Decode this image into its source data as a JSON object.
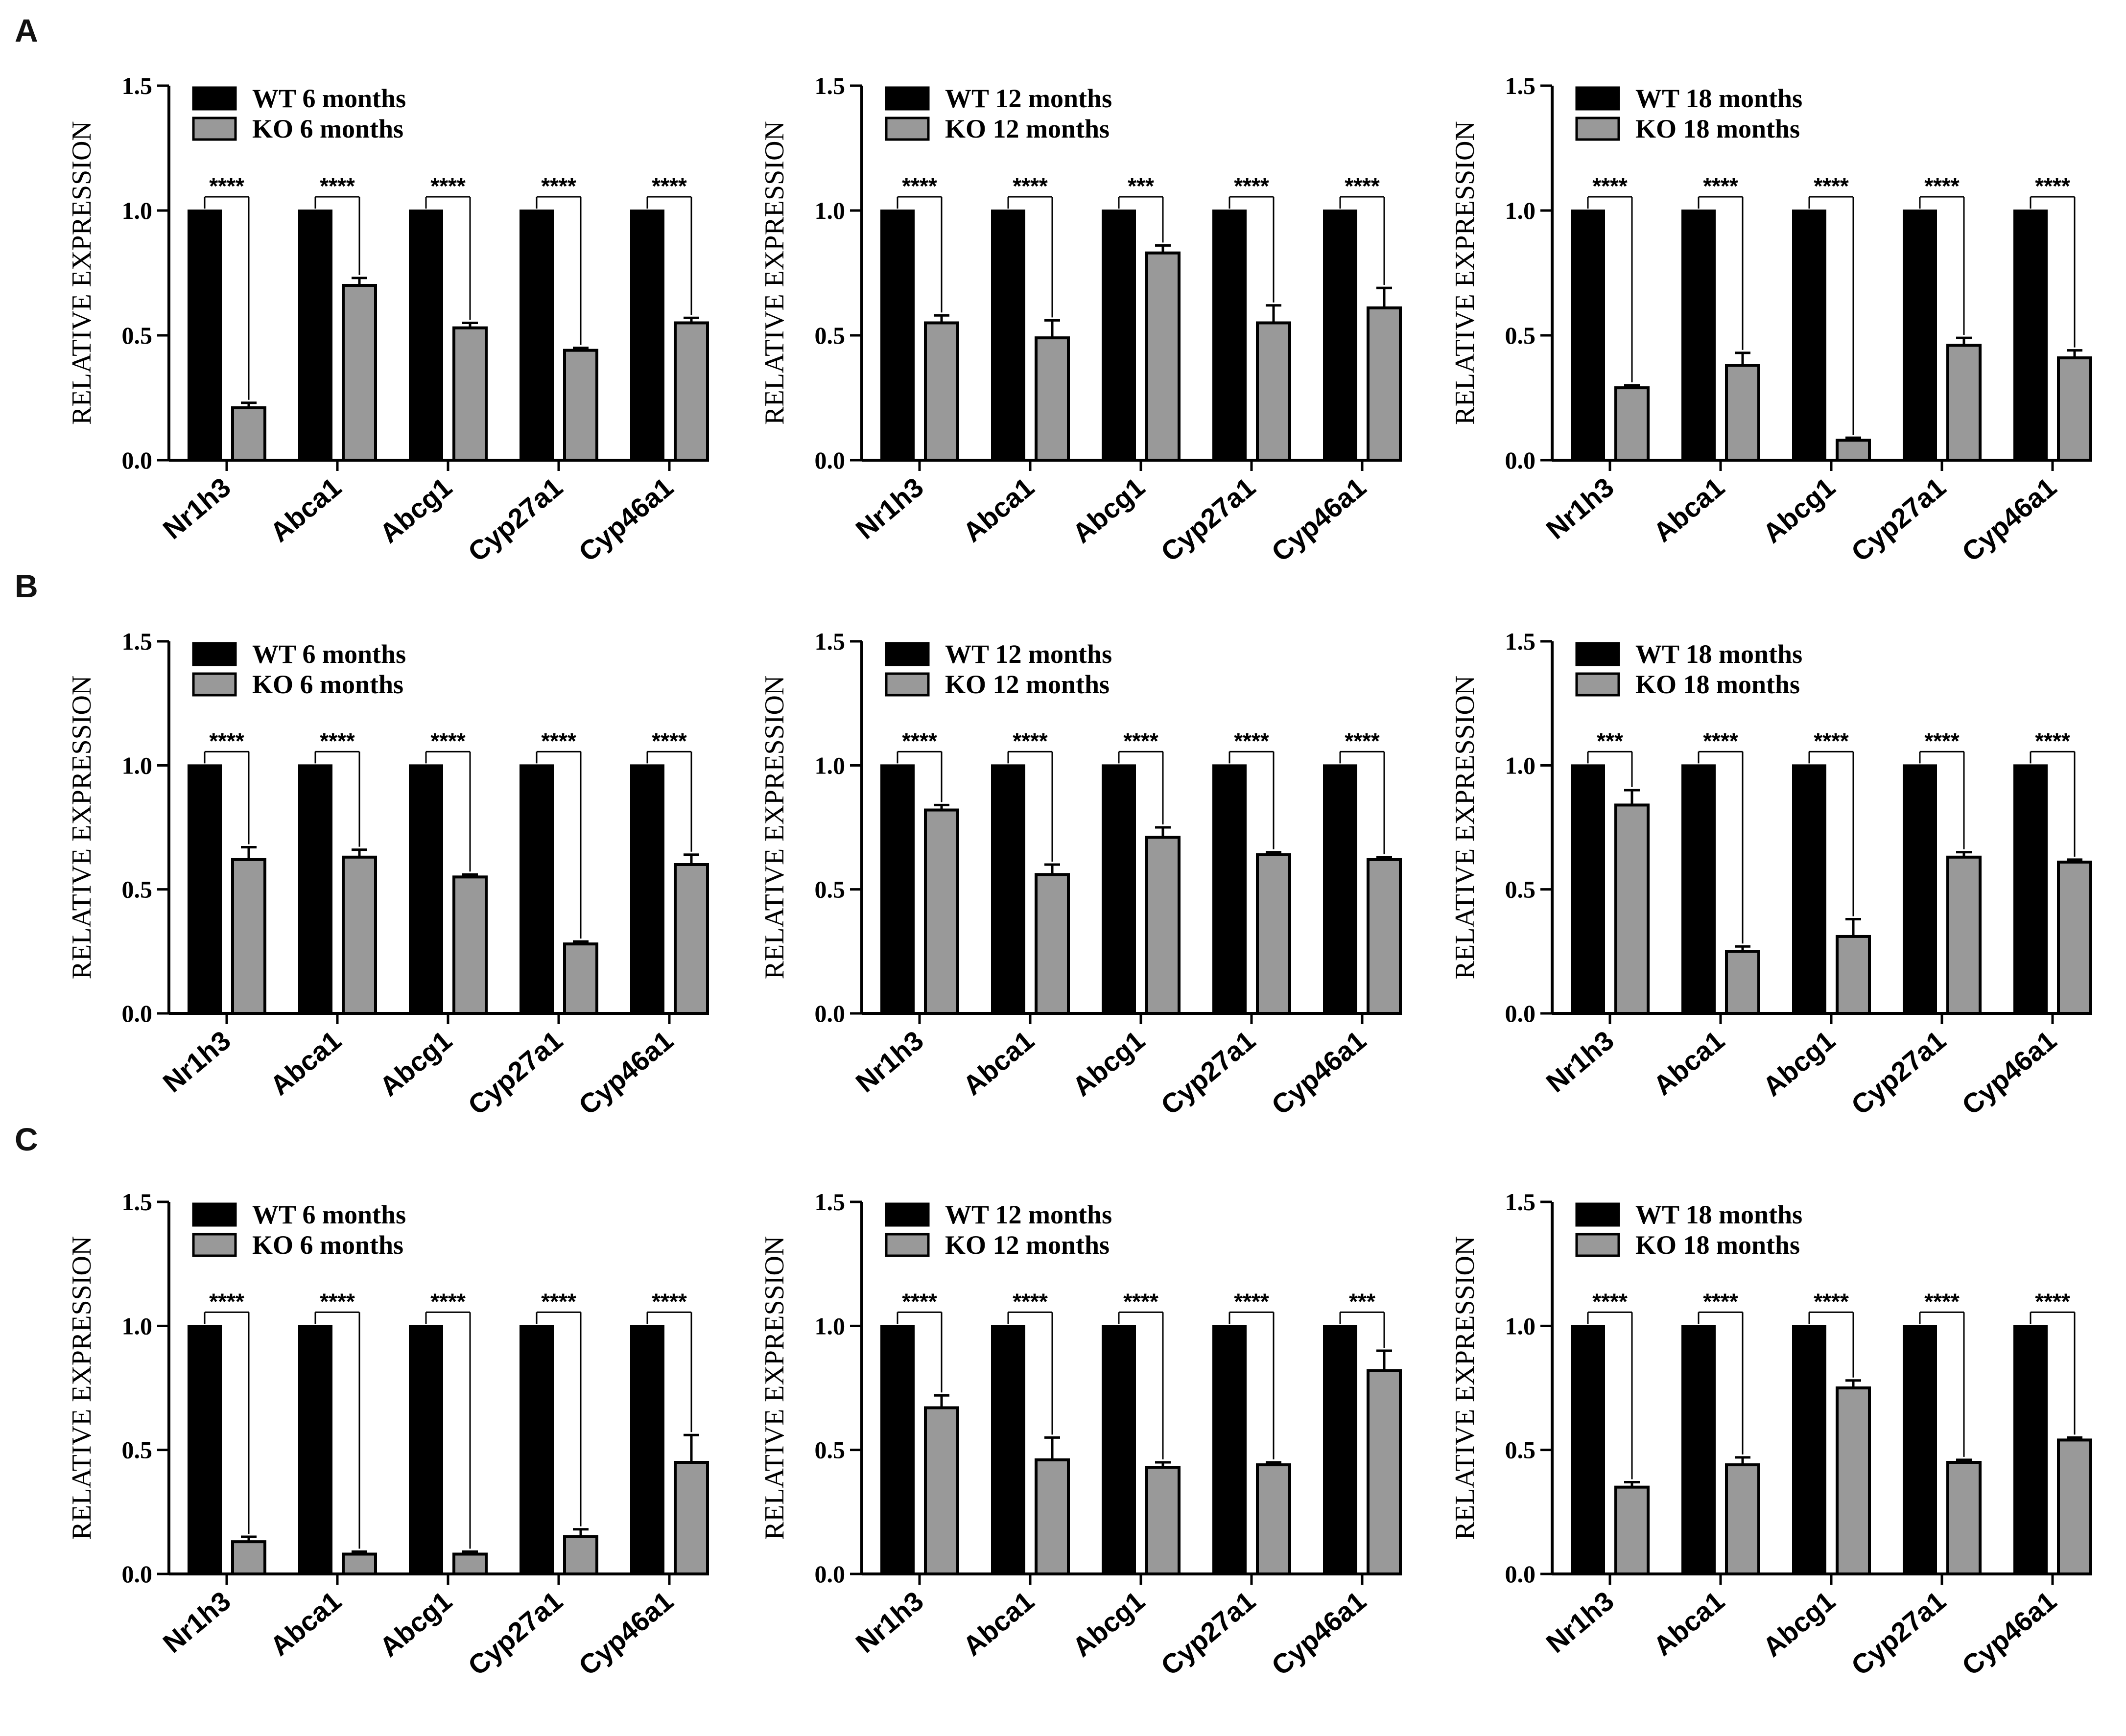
{
  "colors": {
    "wt": "#000000",
    "ko": "#999999",
    "axis": "#000000"
  },
  "chart_data": [
    {
      "panel": "A",
      "type": "bar",
      "ylabel": "RELATIVE EXPRESSION",
      "ylim": [
        0,
        1.5
      ],
      "yticks": [
        "0.0",
        "0.5",
        "1.0",
        "1.5"
      ],
      "categories": [
        "Nr1h3",
        "Abca1",
        "Abcg1",
        "Cyp27a1",
        "Cyp46a1"
      ],
      "series": [
        {
          "name": "WT 6 months",
          "values": [
            1.0,
            1.0,
            1.0,
            1.0,
            1.0
          ],
          "errors": [
            0,
            0,
            0,
            0,
            0
          ]
        },
        {
          "name": "KO 6 months",
          "values": [
            0.21,
            0.7,
            0.53,
            0.44,
            0.55
          ],
          "errors": [
            0.02,
            0.03,
            0.02,
            0.01,
            0.02
          ]
        }
      ],
      "significance": [
        "****",
        "****",
        "****",
        "****",
        "****"
      ]
    },
    {
      "panel": "",
      "type": "bar",
      "ylabel": "RELATIVE EXPRESSION",
      "ylim": [
        0,
        1.5
      ],
      "yticks": [
        "0.0",
        "0.5",
        "1.0",
        "1.5"
      ],
      "categories": [
        "Nr1h3",
        "Abca1",
        "Abcg1",
        "Cyp27a1",
        "Cyp46a1"
      ],
      "series": [
        {
          "name": "WT 12 months",
          "values": [
            1.0,
            1.0,
            1.0,
            1.0,
            1.0
          ],
          "errors": [
            0,
            0,
            0,
            0,
            0
          ]
        },
        {
          "name": "KO 12 months",
          "values": [
            0.55,
            0.49,
            0.83,
            0.55,
            0.61
          ],
          "errors": [
            0.03,
            0.07,
            0.03,
            0.07,
            0.08
          ]
        }
      ],
      "significance": [
        "****",
        "****",
        "***",
        "****",
        "****"
      ]
    },
    {
      "panel": "",
      "type": "bar",
      "ylabel": "RELATIVE EXPRESSION",
      "ylim": [
        0,
        1.5
      ],
      "yticks": [
        "0.0",
        "0.5",
        "1.0",
        "1.5"
      ],
      "categories": [
        "Nr1h3",
        "Abca1",
        "Abcg1",
        "Cyp27a1",
        "Cyp46a1"
      ],
      "series": [
        {
          "name": "WT 18 months",
          "values": [
            1.0,
            1.0,
            1.0,
            1.0,
            1.0
          ],
          "errors": [
            0,
            0,
            0,
            0,
            0
          ]
        },
        {
          "name": "KO 18 months",
          "values": [
            0.29,
            0.38,
            0.08,
            0.46,
            0.41
          ],
          "errors": [
            0.01,
            0.05,
            0.01,
            0.03,
            0.03
          ]
        }
      ],
      "significance": [
        "****",
        "****",
        "****",
        "****",
        "****"
      ]
    },
    {
      "panel": "B",
      "type": "bar",
      "ylabel": "RELATIVE EXPRESSION",
      "ylim": [
        0,
        1.5
      ],
      "yticks": [
        "0.0",
        "0.5",
        "1.0",
        "1.5"
      ],
      "categories": [
        "Nr1h3",
        "Abca1",
        "Abcg1",
        "Cyp27a1",
        "Cyp46a1"
      ],
      "series": [
        {
          "name": "WT 6 months",
          "values": [
            1.0,
            1.0,
            1.0,
            1.0,
            1.0
          ],
          "errors": [
            0,
            0,
            0,
            0,
            0
          ]
        },
        {
          "name": "KO 6 months",
          "values": [
            0.62,
            0.63,
            0.55,
            0.28,
            0.6
          ],
          "errors": [
            0.05,
            0.03,
            0.01,
            0.01,
            0.04
          ]
        }
      ],
      "significance": [
        "****",
        "****",
        "****",
        "****",
        "****"
      ]
    },
    {
      "panel": "",
      "type": "bar",
      "ylabel": "RELATIVE EXPRESSION",
      "ylim": [
        0,
        1.5
      ],
      "yticks": [
        "0.0",
        "0.5",
        "1.0",
        "1.5"
      ],
      "categories": [
        "Nr1h3",
        "Abca1",
        "Abcg1",
        "Cyp27a1",
        "Cyp46a1"
      ],
      "series": [
        {
          "name": "WT 12 months",
          "values": [
            1.0,
            1.0,
            1.0,
            1.0,
            1.0
          ],
          "errors": [
            0,
            0,
            0,
            0,
            0
          ]
        },
        {
          "name": "KO 12 months",
          "values": [
            0.82,
            0.56,
            0.71,
            0.64,
            0.62
          ],
          "errors": [
            0.02,
            0.04,
            0.04,
            0.01,
            0.01
          ]
        }
      ],
      "significance": [
        "****",
        "****",
        "****",
        "****",
        "****"
      ]
    },
    {
      "panel": "",
      "type": "bar",
      "ylabel": "RELATIVE EXPRESSION",
      "ylim": [
        0,
        1.5
      ],
      "yticks": [
        "0.0",
        "0.5",
        "1.0",
        "1.5"
      ],
      "categories": [
        "Nr1h3",
        "Abca1",
        "Abcg1",
        "Cyp27a1",
        "Cyp46a1"
      ],
      "series": [
        {
          "name": "WT 18 months",
          "values": [
            1.0,
            1.0,
            1.0,
            1.0,
            1.0
          ],
          "errors": [
            0,
            0,
            0,
            0,
            0
          ]
        },
        {
          "name": "KO 18 months",
          "values": [
            0.84,
            0.25,
            0.31,
            0.63,
            0.61
          ],
          "errors": [
            0.06,
            0.02,
            0.07,
            0.02,
            0.01
          ]
        }
      ],
      "significance": [
        "***",
        "****",
        "****",
        "****",
        "****"
      ]
    },
    {
      "panel": "C",
      "type": "bar",
      "ylabel": "RELATIVE EXPRESSION",
      "ylim": [
        0,
        1.5
      ],
      "yticks": [
        "0.0",
        "0.5",
        "1.0",
        "1.5"
      ],
      "categories": [
        "Nr1h3",
        "Abca1",
        "Abcg1",
        "Cyp27a1",
        "Cyp46a1"
      ],
      "series": [
        {
          "name": "WT 6 months",
          "values": [
            1.0,
            1.0,
            1.0,
            1.0,
            1.0
          ],
          "errors": [
            0,
            0,
            0,
            0,
            0
          ]
        },
        {
          "name": "KO 6 months",
          "values": [
            0.13,
            0.08,
            0.08,
            0.15,
            0.45
          ],
          "errors": [
            0.02,
            0.01,
            0.01,
            0.03,
            0.11
          ]
        }
      ],
      "significance": [
        "****",
        "****",
        "****",
        "****",
        "****"
      ]
    },
    {
      "panel": "",
      "type": "bar",
      "ylabel": "RELATIVE EXPRESSION",
      "ylim": [
        0,
        1.5
      ],
      "yticks": [
        "0.0",
        "0.5",
        "1.0",
        "1.5"
      ],
      "categories": [
        "Nr1h3",
        "Abca1",
        "Abcg1",
        "Cyp27a1",
        "Cyp46a1"
      ],
      "series": [
        {
          "name": "WT 12 months",
          "values": [
            1.0,
            1.0,
            1.0,
            1.0,
            1.0
          ],
          "errors": [
            0,
            0,
            0,
            0,
            0
          ]
        },
        {
          "name": "KO 12 months",
          "values": [
            0.67,
            0.46,
            0.43,
            0.44,
            0.82
          ],
          "errors": [
            0.05,
            0.09,
            0.02,
            0.01,
            0.08
          ]
        }
      ],
      "significance": [
        "****",
        "****",
        "****",
        "****",
        "***"
      ]
    },
    {
      "panel": "",
      "type": "bar",
      "ylabel": "RELATIVE EXPRESSION",
      "ylim": [
        0,
        1.5
      ],
      "yticks": [
        "0.0",
        "0.5",
        "1.0",
        "1.5"
      ],
      "categories": [
        "Nr1h3",
        "Abca1",
        "Abcg1",
        "Cyp27a1",
        "Cyp46a1"
      ],
      "series": [
        {
          "name": "WT 18 months",
          "values": [
            1.0,
            1.0,
            1.0,
            1.0,
            1.0
          ],
          "errors": [
            0,
            0,
            0,
            0,
            0
          ]
        },
        {
          "name": "KO 18 months",
          "values": [
            0.35,
            0.44,
            0.75,
            0.45,
            0.54
          ],
          "errors": [
            0.02,
            0.03,
            0.03,
            0.01,
            0.01
          ]
        }
      ],
      "significance": [
        "****",
        "****",
        "****",
        "****",
        "****"
      ]
    }
  ]
}
